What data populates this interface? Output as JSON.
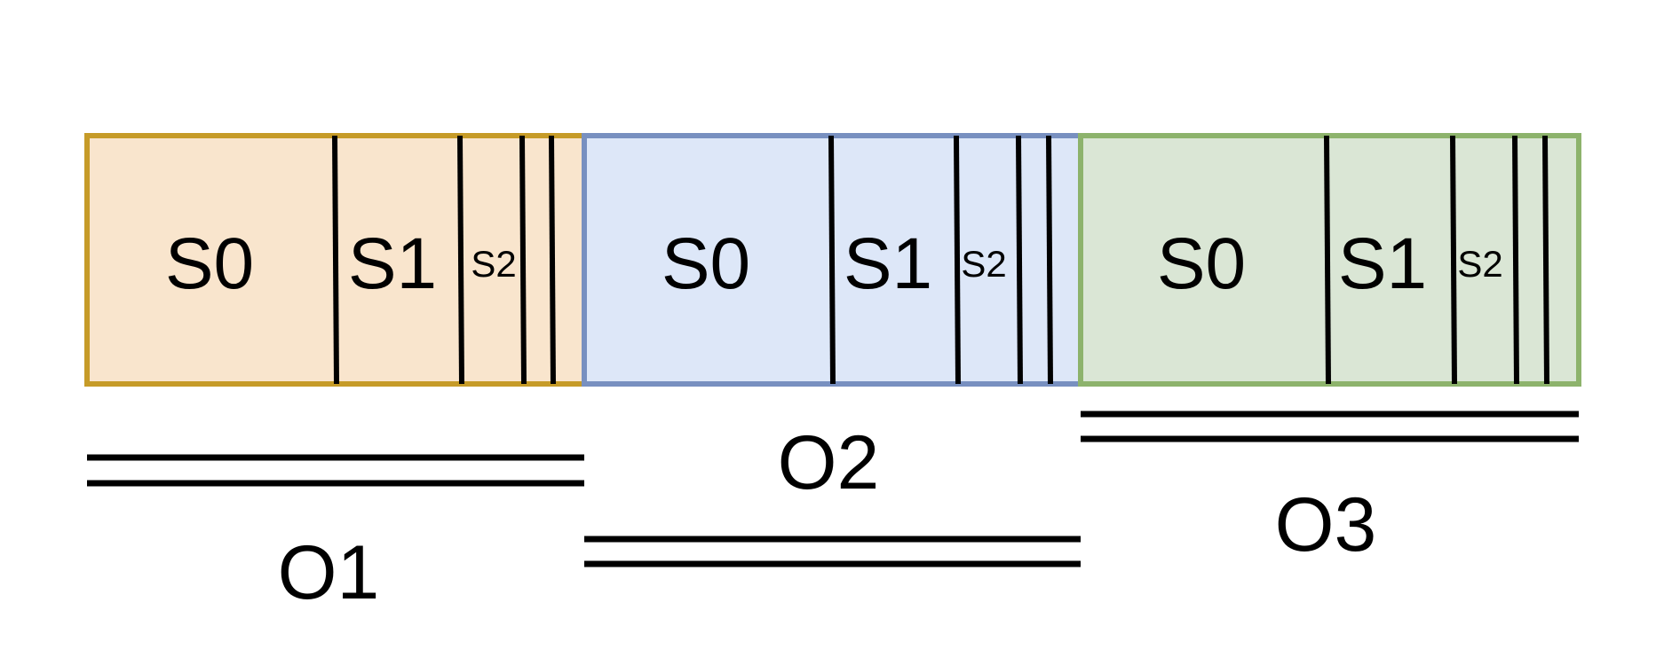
{
  "blocks": [
    {
      "caption": "O1",
      "fill": "#f9e5cd",
      "stroke": "#c69b28",
      "segments": {
        "s0": "S0",
        "s1": "S1",
        "s2": "S2"
      }
    },
    {
      "caption": "O2",
      "fill": "#dde7f8",
      "stroke": "#7890c0",
      "segments": {
        "s0": "S0",
        "s1": "S1",
        "s2": "S2"
      }
    },
    {
      "caption": "O3",
      "fill": "#dae6d5",
      "stroke": "#8db36c",
      "segments": {
        "s0": "S0",
        "s1": "S1",
        "s2": "S2"
      }
    }
  ]
}
